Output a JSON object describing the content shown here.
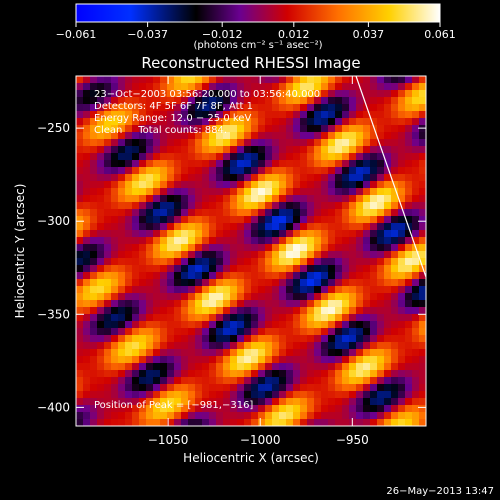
{
  "chart_data": {
    "type": "heatmap",
    "title": "Reconstructed RHESSI Image",
    "xlabel": "Heliocentric X (arcsec)",
    "ylabel": "Heliocentric Y (arcsec)",
    "xlim": [
      -1100,
      -910
    ],
    "ylim": [
      -410,
      -222
    ],
    "x_ticks": [
      -1050,
      -1000,
      -950
    ],
    "y_ticks": [
      -250,
      -300,
      -350,
      -400
    ],
    "x_tick_labels": [
      "−1050",
      "−1000",
      "−950"
    ],
    "y_tick_labels": [
      "−250",
      "−300",
      "−350",
      "−400"
    ],
    "colorbar": {
      "range": [
        -0.061,
        0.061
      ],
      "ticks": [
        -0.061,
        -0.037,
        -0.012,
        0.012,
        0.037,
        0.061
      ],
      "tick_labels": [
        "−0.061",
        "−0.037",
        "−0.012",
        "0.012",
        "0.037",
        "0.061"
      ],
      "unit_label": "(photons cm⁻² s⁻¹ asec⁻²)"
    },
    "annotations": [
      "23−Oct−2003 03:56:20.000 to 03:56:40.000",
      "Detectors: 4F 5F 6F 7F 8F, Att 1",
      "Energy Range: 12.0 − 25.0 keV",
      "Clean     Total counts: 884."
    ],
    "peak_label": "Position of Peak = [−981,−316]",
    "peak": {
      "x": -981,
      "y": -316
    },
    "limb_line": [
      [
        -948,
        -222
      ],
      [
        -910,
        -330
      ]
    ],
    "pattern": {
      "description_values": "diagonal fringe maxima rows, peak near [-981,-316]",
      "peak_value": 0.061,
      "min_value": -0.061
    },
    "colormap": [
      "#0000ff",
      "#000000",
      "#7a00a0",
      "#ff0000",
      "#ff9900",
      "#ffff00",
      "#ffffff"
    ]
  },
  "footer": {
    "timestamp": "26−May−2013 13:47"
  }
}
